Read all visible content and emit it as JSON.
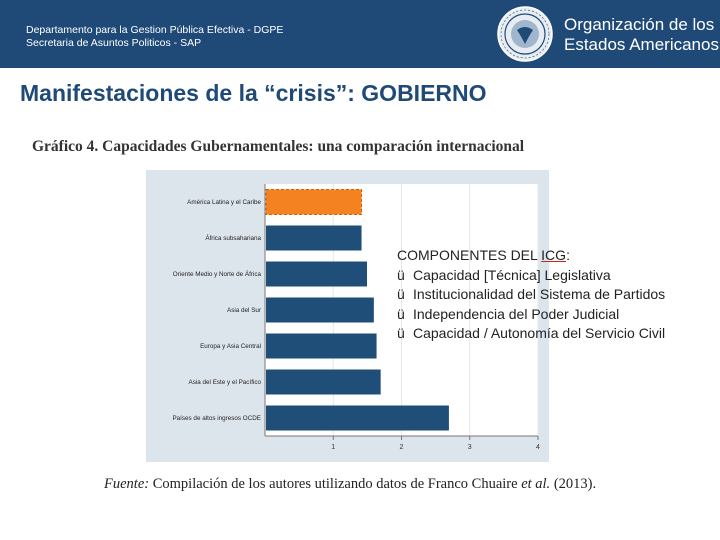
{
  "header": {
    "department": "Departamento para la Gestion Pública Efectiva - DGPE",
    "secretariat": "Secretaria de Asuntos Politicos - SAP",
    "org_line1": "Organización de los",
    "org_line2": "Estados Americanos",
    "logo": "oas-seal-icon"
  },
  "slide": {
    "title": "Manifestaciones de la “crisis”: GOBIERNO"
  },
  "chart_heading": "Gráfico 4. Capacidades Gubernamentales: una comparación internacional",
  "chart_data": {
    "type": "bar",
    "orientation": "horizontal",
    "title": "Gráfico 4. Capacidades Gubernamentales: una comparación internacional",
    "categories": [
      "América Latina y el Caribe",
      "África subsahariana",
      "Oriente Medio y Norte de África",
      "Asia del Sur",
      "Europa y Asia Central",
      "Asia del Este y el Pacífico",
      "Países de altos ingresos OCDE"
    ],
    "values": [
      1.4,
      1.4,
      1.48,
      1.58,
      1.62,
      1.68,
      2.68
    ],
    "highlight_index": 0,
    "highlight_color": "#f58220",
    "bar_color": "#1f4e79",
    "xlim": [
      0,
      4
    ],
    "xticks": [
      "1",
      "2",
      "3",
      "4"
    ],
    "xlabel": "",
    "ylabel": ""
  },
  "components": {
    "title_prefix": "COMPONENTES DEL ",
    "title_icg": "ICG",
    "title_suffix": ":",
    "check": "ü",
    "items": [
      "Capacidad [Técnica] Legislativa",
      "Institucionalidad del Sistema de Partidos",
      "Independencia del Poder Judicial",
      "Capacidad / Autonomía del Servicio Civil"
    ]
  },
  "source": {
    "label": "Fuente:",
    "text": " Compilación de los autores utilizando datos de Franco Chuaire ",
    "etal": "et al.",
    "year": " (2013)."
  }
}
